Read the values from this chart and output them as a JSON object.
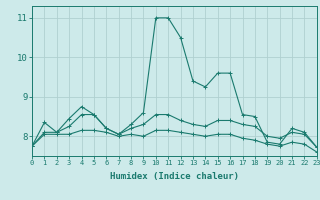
{
  "xlabel": "Humidex (Indice chaleur)",
  "xlim": [
    0,
    23
  ],
  "ylim": [
    7.5,
    11.3
  ],
  "yticks": [
    8,
    9,
    10,
    11
  ],
  "xticks": [
    0,
    1,
    2,
    3,
    4,
    5,
    6,
    7,
    8,
    9,
    10,
    11,
    12,
    13,
    14,
    15,
    16,
    17,
    18,
    19,
    20,
    21,
    22,
    23
  ],
  "bg_color": "#cdeaea",
  "grid_color": "#b0d0d0",
  "line_color": "#1a7a6e",
  "lines": [
    {
      "x": [
        0,
        1,
        2,
        3,
        4,
        5,
        6,
        7,
        8,
        9,
        10,
        11,
        12,
        13,
        14,
        15,
        16,
        17,
        18,
        19,
        20,
        21,
        22,
        23
      ],
      "y": [
        7.75,
        8.35,
        8.1,
        8.45,
        8.75,
        8.55,
        8.2,
        8.05,
        8.3,
        8.6,
        11.0,
        11.0,
        10.5,
        9.4,
        9.25,
        9.6,
        9.6,
        8.55,
        8.5,
        7.85,
        7.8,
        8.2,
        8.1,
        7.72
      ]
    },
    {
      "x": [
        0,
        1,
        2,
        3,
        4,
        5,
        6,
        7,
        8,
        9,
        10,
        11,
        12,
        13,
        14,
        15,
        16,
        17,
        18,
        19,
        20,
        21,
        22,
        23
      ],
      "y": [
        7.75,
        8.1,
        8.1,
        8.25,
        8.55,
        8.55,
        8.2,
        8.05,
        8.2,
        8.3,
        8.55,
        8.55,
        8.4,
        8.3,
        8.25,
        8.4,
        8.4,
        8.3,
        8.25,
        8.0,
        7.95,
        8.1,
        8.05,
        7.72
      ]
    },
    {
      "x": [
        0,
        1,
        2,
        3,
        4,
        5,
        6,
        7,
        8,
        9,
        10,
        11,
        12,
        13,
        14,
        15,
        16,
        17,
        18,
        19,
        20,
        21,
        22,
        23
      ],
      "y": [
        7.75,
        8.05,
        8.05,
        8.05,
        8.15,
        8.15,
        8.1,
        8.0,
        8.05,
        8.0,
        8.15,
        8.15,
        8.1,
        8.05,
        8.0,
        8.05,
        8.05,
        7.95,
        7.9,
        7.8,
        7.75,
        7.85,
        7.8,
        7.6
      ]
    }
  ]
}
